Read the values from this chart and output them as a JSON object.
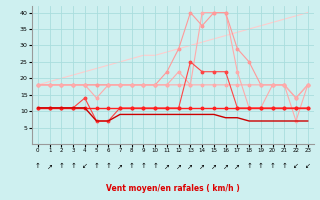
{
  "x": [
    0,
    1,
    2,
    3,
    4,
    5,
    6,
    7,
    8,
    9,
    10,
    11,
    12,
    13,
    14,
    15,
    16,
    17,
    18,
    19,
    20,
    21,
    22,
    23
  ],
  "line_darkred_mean": [
    11,
    11,
    11,
    11,
    11,
    7,
    7,
    9,
    9,
    9,
    9,
    9,
    9,
    9,
    9,
    9,
    8,
    8,
    7,
    7,
    7,
    7,
    7,
    7
  ],
  "line_red_flat": [
    11,
    11,
    11,
    11,
    11,
    11,
    11,
    11,
    11,
    11,
    11,
    11,
    11,
    11,
    11,
    11,
    11,
    11,
    11,
    11,
    11,
    11,
    11,
    11
  ],
  "line_red_var": [
    11,
    11,
    11,
    11,
    14,
    7,
    7,
    11,
    11,
    11,
    11,
    11,
    11,
    25,
    22,
    22,
    22,
    11,
    11,
    11,
    11,
    11,
    11,
    11
  ],
  "line_pink_med": [
    18,
    18,
    18,
    18,
    18,
    14,
    18,
    18,
    18,
    18,
    18,
    18,
    22,
    18,
    18,
    18,
    18,
    18,
    18,
    18,
    18,
    18,
    14,
    18
  ],
  "line_pink_high1": [
    18,
    18,
    18,
    18,
    18,
    18,
    18,
    18,
    18,
    18,
    18,
    22,
    29,
    40,
    36,
    40,
    40,
    29,
    25,
    18,
    18,
    18,
    14,
    18
  ],
  "line_pink_high2": [
    18,
    18,
    18,
    18,
    18,
    18,
    18,
    18,
    18,
    18,
    18,
    18,
    18,
    18,
    40,
    40,
    40,
    22,
    11,
    11,
    18,
    18,
    7,
    18
  ],
  "diag_y": [
    18,
    19,
    20,
    21,
    22,
    23,
    24,
    25,
    26,
    27,
    27,
    28,
    29,
    30,
    31,
    32,
    33,
    34,
    35,
    36,
    37,
    38,
    39,
    40
  ],
  "arrows": [
    "↑",
    "↗",
    "↑",
    "↑",
    "↙",
    "↑",
    "↑",
    "↗",
    "↑",
    "↑",
    "↑",
    "↗",
    "↗",
    "↗",
    "↗",
    "↗",
    "↗",
    "↗",
    "↑",
    "↑",
    "↑",
    "↑",
    "↙",
    "↙"
  ],
  "bg_color": "#cef0f0",
  "grid_color": "#aadddd",
  "xlabel": "Vent moyen/en rafales ( km/h )",
  "ylim": [
    0,
    42
  ],
  "xlim": [
    -0.5,
    23.5
  ],
  "yticks": [
    5,
    10,
    15,
    20,
    25,
    30,
    35,
    40
  ]
}
